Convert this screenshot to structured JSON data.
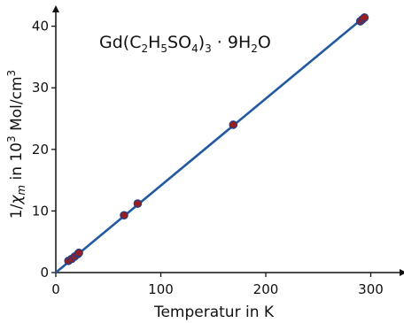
{
  "chart_data": {
    "type": "scatter",
    "title": "",
    "xlabel": "Temperatur in K",
    "ylabel": {
      "prefix": "1/",
      "chi": "χ",
      "sub": "m",
      "middle": " in 10",
      "sup": "3",
      "suffix": " Mol/cm",
      "sup2": "3"
    },
    "annotation": {
      "parts": [
        {
          "t": "Gd(C",
          "sub": false
        },
        {
          "t": "2",
          "sub": true
        },
        {
          "t": "H",
          "sub": false
        },
        {
          "t": "5",
          "sub": true
        },
        {
          "t": "SO",
          "sub": false
        },
        {
          "t": "4",
          "sub": true
        },
        {
          "t": ")",
          "sub": false
        },
        {
          "t": "3",
          "sub": true
        },
        {
          "t": " · 9H",
          "sub": false
        },
        {
          "t": "2",
          "sub": true
        },
        {
          "t": "O",
          "sub": false
        }
      ]
    },
    "xlim": [
      0,
      310
    ],
    "ylim": [
      0,
      43
    ],
    "xticks": [
      0,
      100,
      200,
      300
    ],
    "yticks": [
      0,
      10,
      20,
      30,
      40
    ],
    "grid": false,
    "series": [
      {
        "points": [
          [
            12,
            1.9
          ],
          [
            15,
            2.2
          ],
          [
            18,
            2.6
          ],
          [
            21,
            3.0
          ],
          [
            22,
            3.2
          ],
          [
            65,
            9.3
          ],
          [
            78,
            11.2
          ],
          [
            169,
            24.0
          ],
          [
            290,
            40.8
          ],
          [
            292,
            41.1
          ],
          [
            294,
            41.4
          ]
        ],
        "marker_color": "#9e1c1c",
        "marker_edge": "#1c3f8f"
      }
    ],
    "fit_line": {
      "x": [
        0,
        296
      ],
      "y": [
        0,
        41.8
      ],
      "color": "#1f5aa8"
    }
  }
}
